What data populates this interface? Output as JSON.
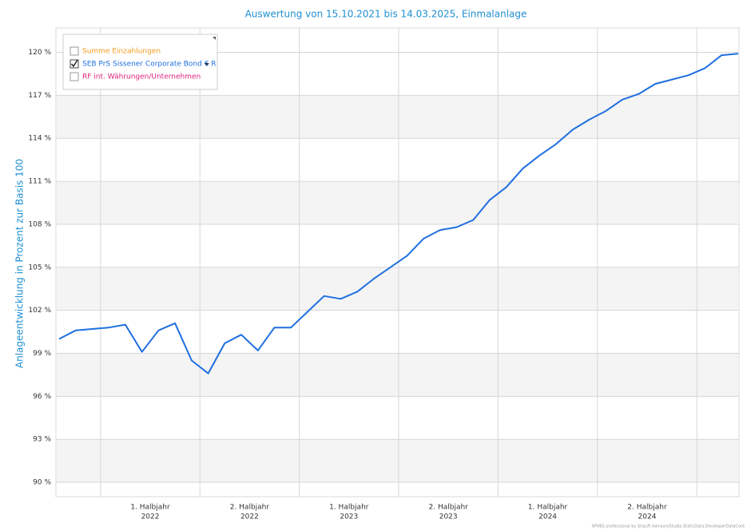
{
  "chart_data": {
    "type": "line",
    "title": "Auswertung von 15.10.2021 bis 14.03.2025, Einmalanlage",
    "y_label": "Anlageentwicklung  in Prozent zur Basis 100",
    "footer": "XPVBS professional by Sitauft AdvisoryStudio.StaticData.DeveloperDataCore",
    "x": [
      "2021-10",
      "2021-11",
      "2021-12",
      "2022-01",
      "2022-02",
      "2022-03",
      "2022-04",
      "2022-05",
      "2022-06",
      "2022-07",
      "2022-08",
      "2022-09",
      "2022-10",
      "2022-11",
      "2022-12",
      "2023-01",
      "2023-02",
      "2023-03",
      "2023-04",
      "2023-05",
      "2023-06",
      "2023-07",
      "2023-08",
      "2023-09",
      "2023-10",
      "2023-11",
      "2023-12",
      "2024-01",
      "2024-02",
      "2024-03",
      "2024-04",
      "2024-05",
      "2024-06",
      "2024-07",
      "2024-08",
      "2024-09",
      "2024-10",
      "2024-11",
      "2024-12",
      "2025-01",
      "2025-02",
      "2025-03"
    ],
    "xlim": [
      "2021-10",
      "2025-03"
    ],
    "xticks": [
      {
        "value": "2022-01",
        "label": "1. Halbjahr",
        "year": "2022"
      },
      {
        "value": "2022-07",
        "label": "2. Halbjahr",
        "year": "2022"
      },
      {
        "value": "2023-01",
        "label": "1. Halbjahr",
        "year": "2023"
      },
      {
        "value": "2023-07",
        "label": "2. Halbjahr",
        "year": "2023"
      },
      {
        "value": "2024-01",
        "label": "1. Halbjahr",
        "year": "2024"
      },
      {
        "value": "2024-07",
        "label": "2. Halbjahr",
        "year": "2024"
      },
      {
        "value": "2025-01"
      }
    ],
    "series": [
      {
        "name": "Summe Einzahlungen",
        "color": "#f29b1d",
        "checked": false
      },
      {
        "name": "SEB PrS Sissener Corporate Bond € R",
        "color": "#1f6fe0",
        "checked": true,
        "values": [
          100.0,
          100.6,
          100.7,
          100.8,
          101.0,
          99.1,
          100.6,
          101.1,
          98.5,
          97.6,
          99.7,
          100.3,
          99.2,
          100.8,
          100.8,
          101.9,
          103.0,
          102.8,
          103.3,
          104.2,
          105.0,
          105.8,
          107.0,
          107.6,
          107.8,
          108.3,
          109.7,
          110.6,
          111.9,
          112.8,
          113.6,
          114.6,
          115.3,
          115.9,
          116.7,
          117.1,
          117.8,
          118.1,
          118.4,
          118.9,
          119.8,
          119.9
        ]
      },
      {
        "name": "RF int. Währungen/Unternehmen",
        "color": "#e0207a",
        "checked": false
      }
    ],
    "ylim": [
      89,
      121.7
    ],
    "yticks": [
      {
        "value": 90,
        "label": "90 %"
      },
      {
        "value": 93,
        "label": "93 %"
      },
      {
        "value": 96,
        "label": "96 %"
      },
      {
        "value": 99,
        "label": "99 %"
      },
      {
        "value": 102,
        "label": "102 %"
      },
      {
        "value": 105,
        "label": "105 %"
      },
      {
        "value": 108,
        "label": "108 %"
      },
      {
        "value": 111,
        "label": "111 %"
      },
      {
        "value": 114,
        "label": "114 %"
      },
      {
        "value": 117,
        "label": "117 %"
      },
      {
        "value": 120,
        "label": "120 %"
      }
    ],
    "grid": true
  }
}
